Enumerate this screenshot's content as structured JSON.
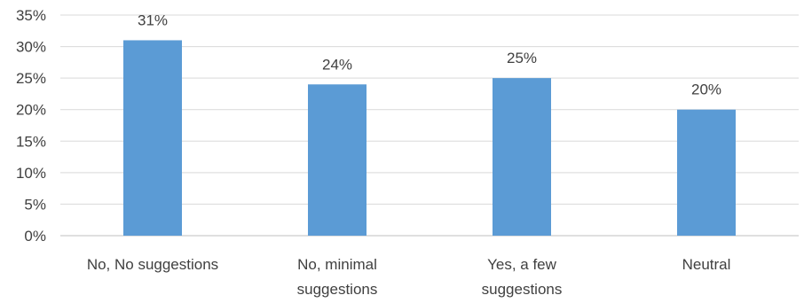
{
  "chart_data": {
    "type": "bar",
    "categories": [
      [
        "No, No suggestions"
      ],
      [
        "No, minimal",
        "suggestions"
      ],
      [
        "Yes, a few",
        "suggestions"
      ],
      [
        "Neutral"
      ]
    ],
    "values": [
      31,
      24,
      25,
      20
    ],
    "data_labels": [
      "31%",
      "24%",
      "25%",
      "20%"
    ],
    "y_ticks": [
      "0%",
      "5%",
      "10%",
      "15%",
      "20%",
      "25%",
      "30%",
      "35%"
    ],
    "ylim": [
      0,
      35
    ],
    "y_step": 5,
    "grid": true,
    "bar_color": "#5b9bd5",
    "title": "",
    "xlabel": "",
    "ylabel": ""
  }
}
